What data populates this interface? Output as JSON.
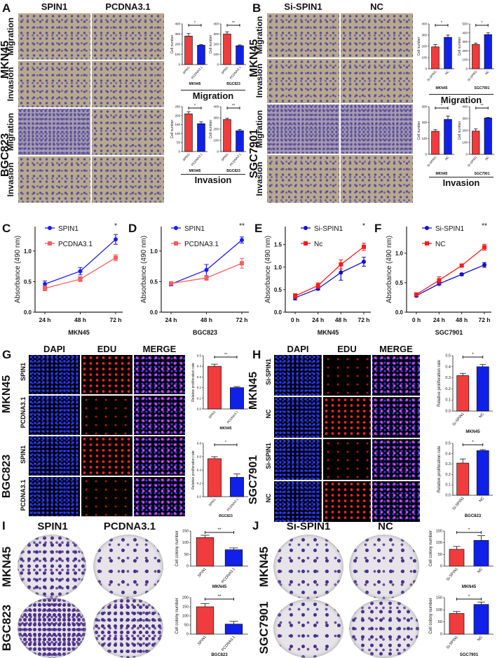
{
  "panels": {
    "A": {
      "label": "A",
      "cols": [
        "SPIN1",
        "PCDNA3.1"
      ],
      "lines": [
        "MKN45",
        "BGC823"
      ],
      "assays": [
        "Migration",
        "Invasion"
      ],
      "group_migration": "Migration",
      "group_invasion": "Invasion"
    },
    "B": {
      "label": "B",
      "cols": [
        "Si-SPIN1",
        "NC"
      ],
      "lines": [
        "MKN45",
        "SGC7901"
      ],
      "assays": [
        "Migration",
        "Invasion"
      ],
      "group_migration": "Migration",
      "group_invasion": "Invasion"
    },
    "C": {
      "label": "C"
    },
    "D": {
      "label": "D"
    },
    "E": {
      "label": "E"
    },
    "F": {
      "label": "F"
    },
    "G": {
      "label": "G",
      "cols": [
        "DAPI",
        "EDU",
        "MERGE"
      ],
      "lines": [
        "MKN45",
        "BGC823"
      ],
      "rows": [
        "SPIN1",
        "PCDNA3.1"
      ]
    },
    "H": {
      "label": "H",
      "cols": [
        "DAPI",
        "EDU",
        "MERGE"
      ],
      "lines": [
        "MKN45",
        "SGC7901"
      ],
      "rows": [
        "Si-SPIN1",
        "NC"
      ]
    },
    "I": {
      "label": "I",
      "cols": [
        "SPIN1",
        "PCDNA3.1"
      ],
      "lines": [
        "MKN45",
        "BGC823"
      ]
    },
    "J": {
      "label": "J",
      "cols": [
        "Si-SPIN1",
        "NC"
      ],
      "lines": [
        "MKN45",
        "SGC7901"
      ]
    }
  },
  "colors": {
    "red": "#f03c3c",
    "blue": "#1020e8",
    "line_blue": "#1a1aff",
    "line_salmon": "#ff5c5c",
    "line_red": "#ff1a1a"
  },
  "chart_data": [
    {
      "id": "A-mig-MKN45",
      "type": "bar",
      "categories": [
        "SPIN1",
        "PCDNA3.1"
      ],
      "values": [
        280,
        190
      ],
      "errors": [
        25,
        8
      ],
      "ylim": [
        0,
        400
      ],
      "ticks": [
        "0",
        "100",
        "200",
        "300",
        "400"
      ],
      "ylabel": "Cell number",
      "xlabel": "MKN45",
      "sig": "*"
    },
    {
      "id": "A-mig-BGC823",
      "type": "bar",
      "categories": [
        "SPIN1",
        "PCDNA3.1"
      ],
      "values": [
        300,
        185
      ],
      "errors": [
        20,
        8
      ],
      "ylim": [
        0,
        400
      ],
      "ticks": [
        "0",
        "100",
        "200",
        "300",
        "400"
      ],
      "ylabel": "Cell number",
      "xlabel": "BGC823",
      "sig": "**"
    },
    {
      "id": "A-inv-MKN45",
      "type": "bar",
      "categories": [
        "SPIN1",
        "PCDNA3.1"
      ],
      "values": [
        210,
        155
      ],
      "errors": [
        12,
        10
      ],
      "ylim": [
        0,
        250
      ],
      "ticks": [
        "0",
        "50",
        "100",
        "150",
        "200",
        "250"
      ],
      "ylabel": "Cell number",
      "xlabel": "MKN45",
      "sig": "*"
    },
    {
      "id": "A-inv-BGC823",
      "type": "bar",
      "categories": [
        "SPIN1",
        "PCDNA3.1"
      ],
      "values": [
        285,
        185
      ],
      "errors": [
        12,
        12
      ],
      "ylim": [
        0,
        400
      ],
      "ticks": [
        "0",
        "100",
        "200",
        "300",
        "400"
      ],
      "ylabel": "Cell number",
      "xlabel": "BGC823",
      "sig": "**"
    },
    {
      "id": "B-mig-MKN45",
      "type": "bar",
      "categories": [
        "Si-SPIN1",
        "NC"
      ],
      "values": [
        195,
        280
      ],
      "errors": [
        20,
        20
      ],
      "ylim": [
        0,
        400
      ],
      "ticks": [
        "0",
        "100",
        "200",
        "300",
        "400"
      ],
      "ylabel": "Cell number",
      "xlabel": "MKN45",
      "sig": "*"
    },
    {
      "id": "B-mig-SGC7901",
      "type": "bar",
      "categories": [
        "Si-SPIN1",
        "NC"
      ],
      "values": [
        270,
        380
      ],
      "errors": [
        15,
        20
      ],
      "ylim": [
        0,
        500
      ],
      "ticks": [
        "0",
        "100",
        "200",
        "300",
        "400",
        "500"
      ],
      "ylabel": "Cell number",
      "xlabel": "SGC7901",
      "sig": "*"
    },
    {
      "id": "B-inv-MKN45",
      "type": "bar",
      "categories": [
        "Si-SPIN1",
        "NC"
      ],
      "values": [
        145,
        220
      ],
      "errors": [
        10,
        20
      ],
      "ylim": [
        0,
        300
      ],
      "ticks": [
        "0",
        "100",
        "200",
        "300"
      ],
      "ylabel": "Cell number",
      "xlabel": "MKN45",
      "sig": "*"
    },
    {
      "id": "B-inv-SGC7901",
      "type": "bar",
      "categories": [
        "Si-SPIN1",
        "NC"
      ],
      "values": [
        195,
        305
      ],
      "errors": [
        18,
        5
      ],
      "ylim": [
        0,
        400
      ],
      "ticks": [
        "0",
        "100",
        "200",
        "300",
        "400"
      ],
      "ylabel": "Cell number",
      "xlabel": "SGC7901",
      "sig": "**"
    },
    {
      "id": "C",
      "type": "line",
      "x": [
        "24 h",
        "48 h",
        "72 h"
      ],
      "series": [
        {
          "name": "SPIN1",
          "values": [
            0.46,
            0.67,
            1.19
          ],
          "errors": [
            0.05,
            0.06,
            0.08
          ],
          "color": "#1a1aff",
          "marker": "circle"
        },
        {
          "name": "PCDNA3.1",
          "values": [
            0.39,
            0.54,
            0.89
          ],
          "errors": [
            0.04,
            0.04,
            0.05
          ],
          "color": "#ff5c5c",
          "marker": "square"
        }
      ],
      "ylim": [
        0,
        1.4
      ],
      "ticks": [
        0,
        0.5,
        1.0
      ],
      "tick_labels": [
        "0.0",
        "0.5",
        "1.0"
      ],
      "ylabel": "Absorbance (490 nm)",
      "xlabel": "MKN45",
      "sig": "*"
    },
    {
      "id": "D",
      "type": "line",
      "x": [
        "24 h",
        "48 h",
        "72 h"
      ],
      "series": [
        {
          "name": "SPIN1",
          "values": [
            0.46,
            0.69,
            1.18
          ],
          "errors": [
            0.03,
            0.09,
            0.05
          ],
          "color": "#1a1aff",
          "marker": "circle"
        },
        {
          "name": "PCDNA3.1",
          "values": [
            0.47,
            0.56,
            0.8
          ],
          "errors": [
            0.03,
            0.04,
            0.08
          ],
          "color": "#ff5c5c",
          "marker": "square"
        }
      ],
      "ylim": [
        0,
        1.4
      ],
      "ticks": [
        0,
        0.5,
        1.0
      ],
      "tick_labels": [
        "0.0",
        "0.5",
        "1.0"
      ],
      "ylabel": "Absorbance (490 nm)",
      "xlabel": "BGC823",
      "sig": "**"
    },
    {
      "id": "E",
      "type": "line",
      "x": [
        "0 h",
        "24 h",
        "48 h",
        "72 h"
      ],
      "series": [
        {
          "name": "Si-SPIN1",
          "values": [
            0.32,
            0.52,
            0.88,
            1.12
          ],
          "errors": [
            0.05,
            0.03,
            0.17,
            0.1
          ],
          "color": "#1010d0",
          "marker": "circle"
        },
        {
          "name": "Nc",
          "values": [
            0.36,
            0.59,
            1.06,
            1.45
          ],
          "errors": [
            0.05,
            0.06,
            0.1,
            0.08
          ],
          "color": "#ff1a1a",
          "marker": "square"
        }
      ],
      "ylim": [
        0,
        1.9
      ],
      "ticks": [
        0,
        0.5,
        1.0,
        1.5
      ],
      "tick_labels": [
        "0.0",
        "0.5",
        "1.0",
        "1.5"
      ],
      "ylabel": "Absorbance (490 nm)",
      "xlabel": "MKN45",
      "sig": "*"
    },
    {
      "id": "F",
      "type": "line",
      "x": [
        "0 h",
        "24 h",
        "48 h",
        "72 h"
      ],
      "series": [
        {
          "name": "Si-SPIN1",
          "values": [
            0.28,
            0.48,
            0.64,
            0.8
          ],
          "errors": [
            0.02,
            0.02,
            0.02,
            0.04
          ],
          "color": "#1010d0",
          "marker": "circle"
        },
        {
          "name": "NC",
          "values": [
            0.3,
            0.54,
            0.79,
            1.1
          ],
          "errors": [
            0.02,
            0.06,
            0.02,
            0.05
          ],
          "color": "#ff1a1a",
          "marker": "square"
        }
      ],
      "ylim": [
        0,
        1.45
      ],
      "ticks": [
        0,
        0.5,
        1.0
      ],
      "tick_labels": [
        "0.0",
        "0.5",
        "1.0"
      ],
      "ylabel": "Absorbance (490 nm)",
      "xlabel": "SGC7901",
      "sig": "**"
    },
    {
      "id": "G-MKN45",
      "type": "bar",
      "categories": [
        "SPIN1",
        "PCDNA3.1"
      ],
      "values": [
        0.4,
        0.2
      ],
      "errors": [
        0.02,
        0.01
      ],
      "ylim": [
        0,
        0.5
      ],
      "ticks": [
        "0.0",
        "0.1",
        "0.2",
        "0.3",
        "0.4",
        "0.5"
      ],
      "ylabel": "Relative proliferation rate",
      "xlabel": "MKN45",
      "sig": "**"
    },
    {
      "id": "G-BGC823",
      "type": "bar",
      "categories": [
        "SPIN1",
        "PCDNA3.1"
      ],
      "values": [
        0.57,
        0.29
      ],
      "errors": [
        0.03,
        0.05
      ],
      "ylim": [
        0,
        0.8
      ],
      "ticks": [
        "0.0",
        "0.2",
        "0.4",
        "0.6",
        "0.8"
      ],
      "ylabel": "Relative proliferation rate",
      "xlabel": "BGC823",
      "sig": "*"
    },
    {
      "id": "H-MKN45",
      "type": "bar",
      "categories": [
        "Si-SPIN1",
        "NC"
      ],
      "values": [
        0.32,
        0.4
      ],
      "errors": [
        0.02,
        0.02
      ],
      "ylim": [
        0,
        0.5
      ],
      "ticks": [
        "0.0",
        "0.1",
        "0.2",
        "0.3",
        "0.4",
        "0.5"
      ],
      "ylabel": "Relative proliferation rate",
      "xlabel": "MKN45",
      "sig": "*"
    },
    {
      "id": "H-BGC823",
      "type": "bar",
      "categories": [
        "Si-SPIN1",
        "NC"
      ],
      "values": [
        0.31,
        0.43
      ],
      "errors": [
        0.04,
        0.01
      ],
      "ylim": [
        0,
        0.5
      ],
      "ticks": [
        "0.0",
        "0.1",
        "0.2",
        "0.3",
        "0.4",
        "0.5"
      ],
      "ylabel": "Relative proliferation rate",
      "xlabel": "BGC823",
      "sig": "*"
    },
    {
      "id": "I-MKN45",
      "type": "bar",
      "categories": [
        "SPIN1",
        "PCDNA3.1"
      ],
      "values": [
        122,
        70
      ],
      "errors": [
        10,
        8
      ],
      "ylim": [
        0,
        150
      ],
      "ticks": [
        "0",
        "50",
        "100",
        "150"
      ],
      "ylabel": "Cell colony number",
      "xlabel": "MKN45",
      "sig": "**"
    },
    {
      "id": "I-BGC823",
      "type": "bar",
      "categories": [
        "SPIN1",
        "PCDNA3.1"
      ],
      "values": [
        150,
        55
      ],
      "errors": [
        18,
        15
      ],
      "ylim": [
        0,
        200
      ],
      "ticks": [
        "0",
        "50",
        "100",
        "150",
        "200"
      ],
      "ylabel": "Cell colony number",
      "xlabel": "BGC823",
      "sig": "**"
    },
    {
      "id": "J-MKN45",
      "type": "bar",
      "categories": [
        "Si-SPIN1",
        "NC"
      ],
      "values": [
        72,
        110
      ],
      "errors": [
        12,
        20
      ],
      "ylim": [
        0,
        150
      ],
      "ticks": [
        "0",
        "50",
        "100",
        "150"
      ],
      "ylabel": "Cell colony number",
      "xlabel": "MKN45",
      "sig": "*"
    },
    {
      "id": "J-SGC7901",
      "type": "bar",
      "categories": [
        "Si-SPIN1",
        "NC"
      ],
      "values": [
        85,
        122
      ],
      "errors": [
        8,
        10
      ],
      "ylim": [
        0,
        150
      ],
      "ticks": [
        "0",
        "50",
        "100",
        "150"
      ],
      "ylabel": "Cell colony number",
      "xlabel": "SGC7901",
      "sig": "*"
    }
  ]
}
